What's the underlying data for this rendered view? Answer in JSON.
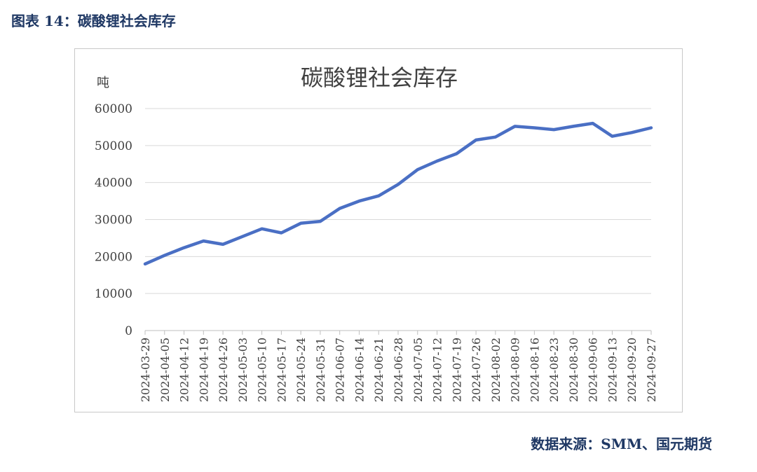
{
  "figure_title": "图表 14：碳酸锂社会库存",
  "source": "数据来源：SMM、国元期货",
  "colors": {
    "line": "#4a6fc4",
    "heading": "#1f3864",
    "grid": "#d9d9d9",
    "axis": "#bfbfbf",
    "text": "#404040"
  },
  "chart_data": {
    "type": "line",
    "title": "碳酸锂社会库存",
    "ylabel": "吨",
    "xlabel": "",
    "ylim": [
      0,
      60000
    ],
    "yticks": [
      0,
      10000,
      20000,
      30000,
      40000,
      50000,
      60000
    ],
    "grid": true,
    "legend": "none",
    "categories": [
      "2024-03-29",
      "2024-04-05",
      "2024-04-12",
      "2024-04-19",
      "2024-04-26",
      "2024-05-03",
      "2024-05-10",
      "2024-05-17",
      "2024-05-24",
      "2024-05-31",
      "2024-06-07",
      "2024-06-14",
      "2024-06-21",
      "2024-06-28",
      "2024-07-05",
      "2024-07-12",
      "2024-07-19",
      "2024-07-26",
      "2024-08-02",
      "2024-08-09",
      "2024-08-16",
      "2024-08-23",
      "2024-08-30",
      "2024-09-06",
      "2024-09-13",
      "2024-09-20",
      "2024-09-27"
    ],
    "series": [
      {
        "values": [
          18000,
          20300,
          22400,
          24200,
          23300,
          25400,
          27500,
          26400,
          29000,
          29500,
          33000,
          35000,
          36400,
          39500,
          43500,
          45800,
          47800,
          51500,
          52300,
          55200,
          54800,
          54300,
          55200,
          56000,
          52500,
          53500,
          54800
        ]
      }
    ]
  }
}
